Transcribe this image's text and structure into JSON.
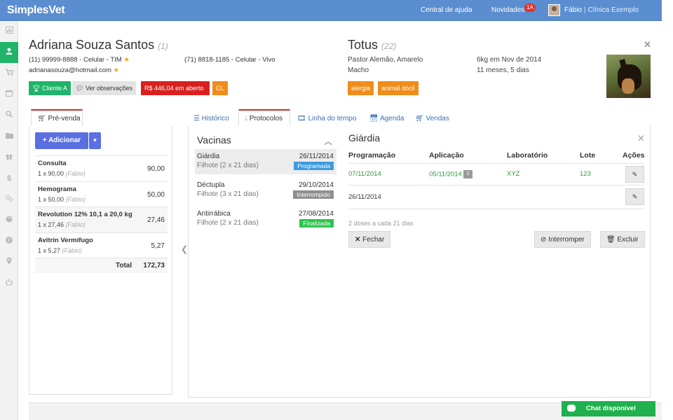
{
  "topbar": {
    "logo": "SimplesVet",
    "help": "Central de ajuda",
    "news": "Novidades",
    "news_count": "1A",
    "user": "Fábio",
    "separator": "|",
    "clinic": "Clínica Exemplo"
  },
  "sidebar": {
    "icons": [
      "dashboard-icon",
      "user-icon",
      "cart-icon",
      "calendar-icon",
      "search-icon",
      "folder-icon",
      "gift-icon",
      "dollar-icon",
      "settings-icon",
      "globe-icon",
      "help-icon",
      "map-pin-icon",
      "power-icon"
    ],
    "active_index": 1
  },
  "client": {
    "name": "Adriana Souza Santos",
    "id": "(1)",
    "phone1": "(11) 99999-8888 - Celular - TIM",
    "phone2": "(71) 8818-1185 - Celular - Vivo",
    "email": "adrianasouza@hotmail.com",
    "tags": {
      "client_a": "Cliente A",
      "observations": "Ver observações",
      "open": "R$ 446,04 em aberto",
      "cl": "CL"
    }
  },
  "pet": {
    "name": "Totus",
    "id": "(22)",
    "breed": "Pastor Alemão, Amarelo",
    "sex": "Macho",
    "weight": "6kg em Nov de 2014",
    "age": "11 meses, 5 dias",
    "tags": [
      "alergia",
      "animal dócil"
    ]
  },
  "presale": {
    "tab": "Pré-venda",
    "add_label": "Adicionar",
    "items": [
      {
        "name": "Consulta",
        "qty": "1 x 90,00",
        "user": "(Fábio)",
        "value": "90,00"
      },
      {
        "name": "Hemograma",
        "qty": "1 x 50,00",
        "user": "(Fábio)",
        "value": "50,00"
      },
      {
        "name": "Revolution 12% 10,1 a 20,0 kg",
        "qty": "1 x 27,46",
        "user": "(Fábio)",
        "value": "27,46"
      },
      {
        "name": "Avitrin Vermífugo",
        "qty": "1 x 5,27",
        "user": "(Fábio)",
        "value": "5,27"
      }
    ],
    "total_label": "Total",
    "total_value": "172,73"
  },
  "tabs": [
    "Histórico",
    "Protocolos",
    "Linha do tempo",
    "Agenda",
    "Vendas"
  ],
  "active_tab": "Protocolos",
  "vaccines": {
    "title": "Vacinas",
    "items": [
      {
        "name": "Giárdia",
        "sched": "Filhote (2 x 21 dias)",
        "date": "26/11/2014",
        "status": "Programada",
        "color": "#3d9be0"
      },
      {
        "name": "Déctupla",
        "sched": "Filhote (3 x 21 dias)",
        "date": "29/10/2014",
        "status": "Interrompido",
        "color": "#8f8f8f"
      },
      {
        "name": "Antirrábica",
        "sched": "Filhote (2 x 21 dias)",
        "date": "27/08/2014",
        "status": "Finalizada",
        "color": "#2fc44f"
      }
    ]
  },
  "detail": {
    "title": "Giárdia",
    "headers": [
      "Programação",
      "Aplicação",
      "Laboratório",
      "Lote",
      "Ações"
    ],
    "rows": [
      {
        "prog": "07/11/2014",
        "app": "05/11/2014",
        "app_badge": "2",
        "lab": "XYZ",
        "lote": "123"
      },
      {
        "prog": "26/11/2014",
        "app": "",
        "app_badge": "",
        "lab": "",
        "lote": ""
      }
    ],
    "note": "2 doses a cada 21 dias",
    "close_label": "Fechar",
    "interrupt_label": "Interromper",
    "delete_label": "Excluir"
  },
  "chat": {
    "label": "Chat disponível"
  },
  "colors": {
    "topbar": "#5b8ed0",
    "accent_green": "#20b46a",
    "button_blue": "#5a70e0",
    "tag_red": "#d9201e",
    "tag_orange": "#f08c1a",
    "chat_green": "#20b14e"
  }
}
